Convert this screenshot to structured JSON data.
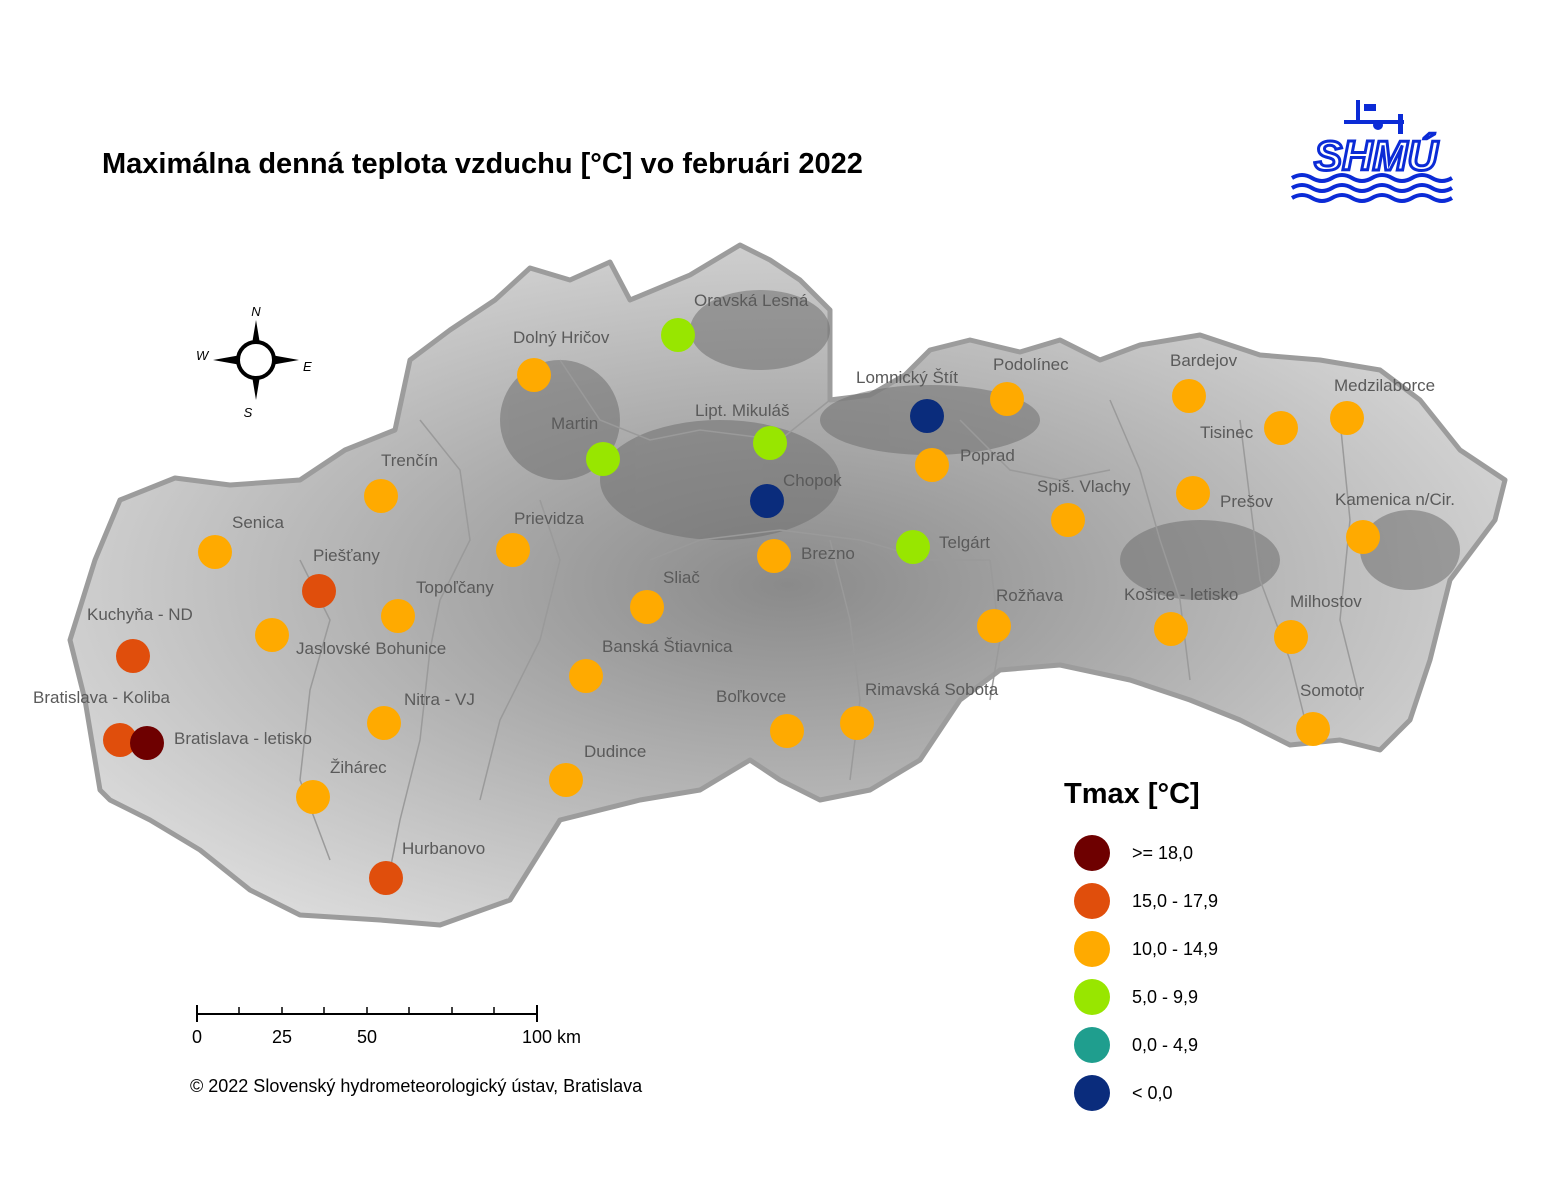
{
  "title": "Maximálna denná teplota vzduchu [°C] vo februári 2022",
  "logo_text": "SHMÚ",
  "compass": {
    "n": "N",
    "e": "E",
    "s": "S",
    "w": "W"
  },
  "scale_bar": {
    "labels": [
      "0",
      "25",
      "50",
      "100 km"
    ]
  },
  "copyright": "© 2022 Slovenský hydrometeorologický ústav, Bratislava",
  "legend": {
    "title": "Tmax [°C]",
    "classes": [
      {
        "label": ">= 18,0",
        "color": "#6e0000"
      },
      {
        "label": "15,0 - 17,9",
        "color": "#e04e0c"
      },
      {
        "label": "10,0 - 14,9",
        "color": "#ffaa00"
      },
      {
        "label": "5,0 - 9,9",
        "color": "#98e600"
      },
      {
        "label": "0,0 - 4,9",
        "color": "#1f9e8e"
      },
      {
        "label": "< 0,0",
        "color": "#0a2c7c"
      }
    ]
  },
  "stations": [
    {
      "name": "Oravská Lesná",
      "class": 3
    },
    {
      "name": "Dolný Hričov",
      "class": 2
    },
    {
      "name": "Martin",
      "class": 3
    },
    {
      "name": "Lipt. Mikuláš",
      "class": 3
    },
    {
      "name": "Lomnický Štít",
      "class": 5
    },
    {
      "name": "Podolínec",
      "class": 2
    },
    {
      "name": "Bardejov",
      "class": 2
    },
    {
      "name": "Medzilaborce",
      "class": 2
    },
    {
      "name": "Tisinec",
      "class": 2
    },
    {
      "name": "Poprad",
      "class": 2
    },
    {
      "name": "Chopok",
      "class": 5
    },
    {
      "name": "Trenčín",
      "class": 2
    },
    {
      "name": "Prievidza",
      "class": 2
    },
    {
      "name": "Senica",
      "class": 2
    },
    {
      "name": "Piešťany",
      "class": 1
    },
    {
      "name": "Spiš. Vlachy",
      "class": 2
    },
    {
      "name": "Prešov",
      "class": 2
    },
    {
      "name": "Kamenica n/Cir.",
      "class": 2
    },
    {
      "name": "Brezno",
      "class": 2
    },
    {
      "name": "Telgárt",
      "class": 3
    },
    {
      "name": "Topoľčany",
      "class": 2
    },
    {
      "name": "Sliač",
      "class": 2
    },
    {
      "name": "Kuchyňa - ND",
      "class": 1
    },
    {
      "name": "Jaslovské Bohunice",
      "class": 2
    },
    {
      "name": "Rožňava",
      "class": 2
    },
    {
      "name": "Košice - letisko",
      "class": 2
    },
    {
      "name": "Milhostov",
      "class": 2
    },
    {
      "name": "Banská Štiavnica",
      "class": 2
    },
    {
      "name": "Bratislava - Koliba",
      "class": 1
    },
    {
      "name": "Bratislava - letisko",
      "class": 0
    },
    {
      "name": "Nitra - VJ",
      "class": 2
    },
    {
      "name": "Boľkovce",
      "class": 2
    },
    {
      "name": "Rimavská Sobota",
      "class": 2
    },
    {
      "name": "Somotor",
      "class": 2
    },
    {
      "name": "Žihárec",
      "class": 2
    },
    {
      "name": "Dudince",
      "class": 2
    },
    {
      "name": "Hurbanovo",
      "class": 1
    }
  ]
}
